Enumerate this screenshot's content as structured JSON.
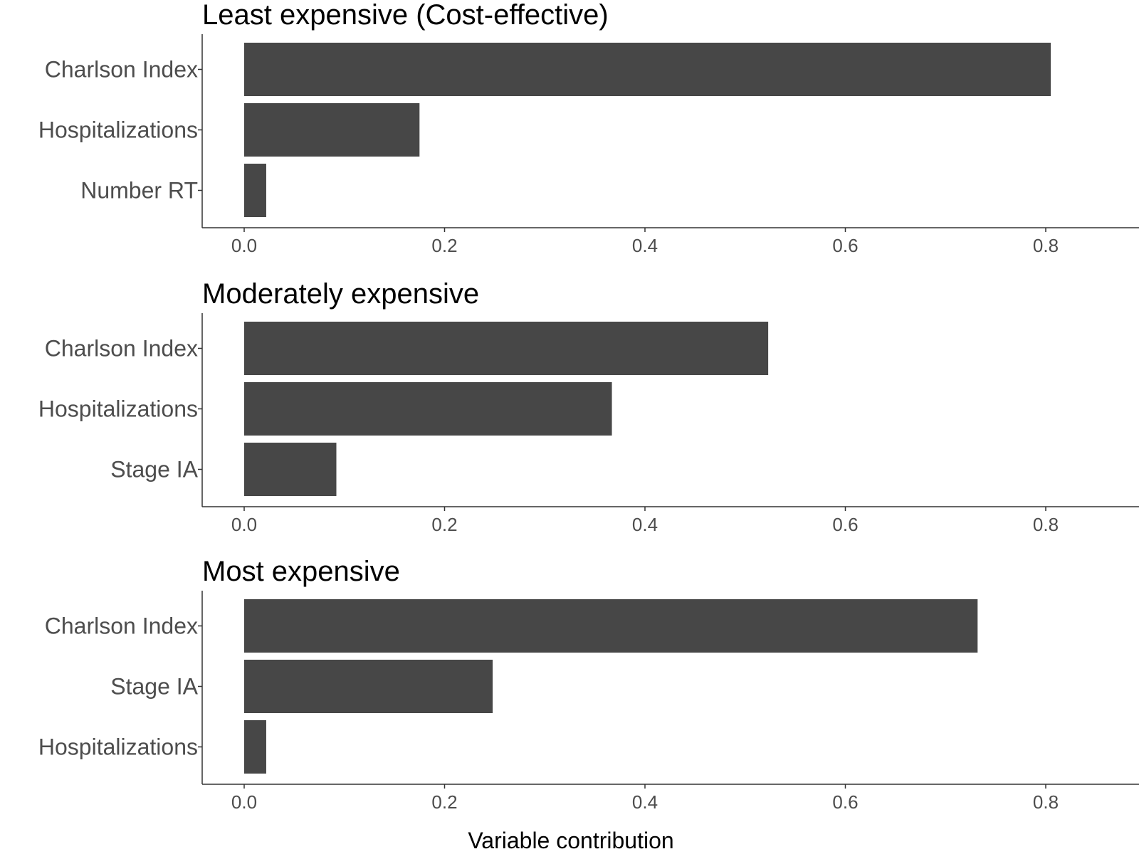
{
  "chart_data": [
    {
      "type": "bar",
      "orientation": "horizontal",
      "title": "Least expensive (Cost-effective)",
      "categories": [
        "Charlson Index",
        "Hospitalizations",
        "Number RT"
      ],
      "values": [
        0.805,
        0.175,
        0.022
      ],
      "xticks": [
        "0.0",
        "0.2",
        "0.4",
        "0.6",
        "0.8"
      ],
      "xlim": [
        0,
        0.88
      ],
      "xlabel": "",
      "ylabel": ""
    },
    {
      "type": "bar",
      "orientation": "horizontal",
      "title": "Moderately expensive",
      "categories": [
        "Charlson Index",
        "Hospitalizations",
        "Stage IA"
      ],
      "values": [
        0.523,
        0.367,
        0.092
      ],
      "xticks": [
        "0.0",
        "0.2",
        "0.4",
        "0.6",
        "0.8"
      ],
      "xlim": [
        0,
        0.88
      ],
      "xlabel": "",
      "ylabel": ""
    },
    {
      "type": "bar",
      "orientation": "horizontal",
      "title": "Most expensive",
      "categories": [
        "Charlson Index",
        "Stage IA",
        "Hospitalizations"
      ],
      "values": [
        0.732,
        0.248,
        0.022
      ],
      "xticks": [
        "0.0",
        "0.2",
        "0.4",
        "0.6",
        "0.8"
      ],
      "xlim": [
        0,
        0.88
      ],
      "xlabel": "",
      "ylabel": ""
    }
  ],
  "shared_xlabel": "Variable contribution",
  "colors": {
    "bar": "#474747",
    "axis": "#333333",
    "text": "#4d4d4d"
  }
}
